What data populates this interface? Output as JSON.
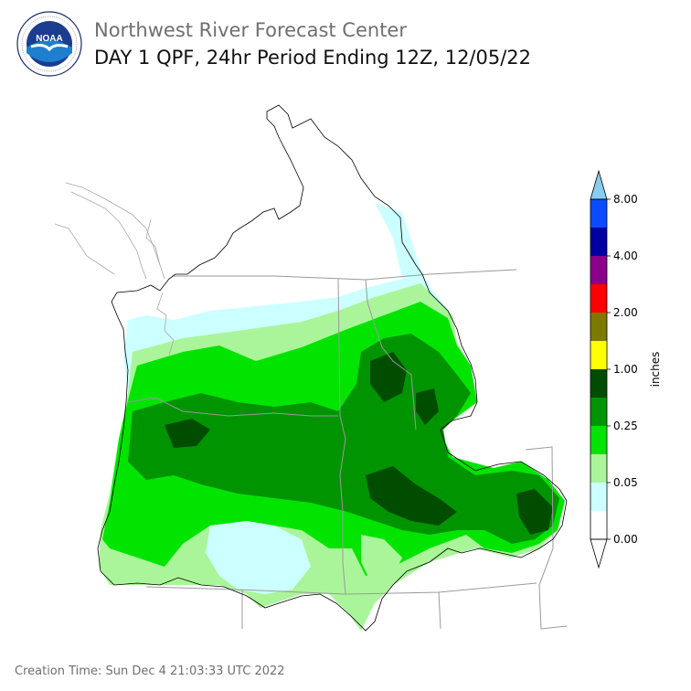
{
  "header": {
    "title_line1": "Northwest River Forecast Center",
    "title_line2": "DAY 1 QPF, 24hr Period Ending 12Z, 12/05/22",
    "logo_text": "NOAA",
    "logo_ring_text": "NATIONAL OCEANIC AND ATMOSPHERIC ADMINISTRATION · U.S. DEPARTMENT OF COMMERCE"
  },
  "colorbar": {
    "unit_label": "inches",
    "tick_labels": [
      "0.00",
      "0.05",
      "0.25",
      "1.00",
      "2.00",
      "4.00",
      "8.00"
    ],
    "bins": [
      {
        "color": "#ffffff"
      },
      {
        "color": "#ccffff"
      },
      {
        "color": "#aaf59a"
      },
      {
        "color": "#00e400"
      },
      {
        "color": "#009400"
      },
      {
        "color": "#004d00"
      },
      {
        "color": "#ffff00"
      },
      {
        "color": "#7b7b00"
      },
      {
        "color": "#ff0000"
      },
      {
        "color": "#8b008b"
      },
      {
        "color": "#0000a0"
      },
      {
        "color": "#0a4bff"
      }
    ],
    "over_color": "#88ccee",
    "under_color": "#ffffff"
  },
  "footer": {
    "creation_time": "Creation Time: Sun Dec 4 21:03:33 UTC 2022"
  }
}
